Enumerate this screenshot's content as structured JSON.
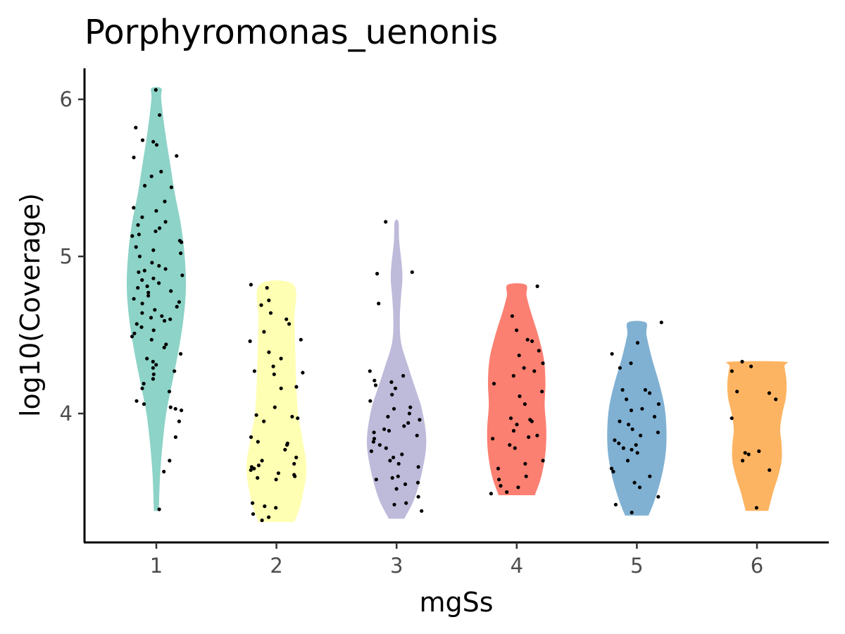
{
  "chart_data": {
    "type": "violin",
    "title": "Porphyromonas_uenonis",
    "xlabel": "mgSs",
    "ylabel": "log10(Coverage)",
    "categories": [
      "1",
      "2",
      "3",
      "4",
      "5",
      "6"
    ],
    "ylim": [
      3.2,
      6.2
    ],
    "yticks": [
      4,
      5,
      6
    ],
    "grid": false,
    "legend": "none",
    "colors": [
      "#8DD3C7",
      "#FFFFB3",
      "#BEBADA",
      "#FB8072",
      "#80B1D3",
      "#FDB462"
    ],
    "groups": [
      {
        "category": "1",
        "min": 3.38,
        "max": 6.07,
        "density": [
          [
            3.38,
            0.02
          ],
          [
            3.6,
            0.03
          ],
          [
            3.8,
            0.05
          ],
          [
            4.0,
            0.08
          ],
          [
            4.2,
            0.13
          ],
          [
            4.4,
            0.18
          ],
          [
            4.6,
            0.22
          ],
          [
            4.8,
            0.24
          ],
          [
            5.0,
            0.23
          ],
          [
            5.2,
            0.2
          ],
          [
            5.4,
            0.15
          ],
          [
            5.6,
            0.11
          ],
          [
            5.8,
            0.07
          ],
          [
            6.0,
            0.04
          ],
          [
            6.07,
            0.04
          ]
        ],
        "points": [
          6.06,
          5.9,
          5.82,
          5.74,
          5.73,
          5.71,
          5.63,
          5.64,
          5.54,
          5.51,
          5.45,
          5.44,
          5.35,
          5.31,
          5.29,
          5.25,
          5.22,
          5.2,
          5.18,
          5.16,
          5.14,
          5.13,
          5.1,
          5.09,
          5.06,
          5.04,
          5.02,
          5.0,
          4.96,
          4.94,
          4.92,
          4.91,
          4.9,
          4.88,
          4.86,
          4.85,
          4.83,
          4.81,
          4.8,
          4.78,
          4.77,
          4.75,
          4.73,
          4.71,
          4.7,
          4.68,
          4.66,
          4.64,
          4.62,
          4.61,
          4.6,
          4.59,
          4.57,
          4.55,
          4.53,
          4.51,
          4.49,
          4.47,
          4.44,
          4.42,
          4.38,
          4.35,
          4.33,
          4.31,
          4.29,
          4.27,
          4.25,
          4.22,
          4.19,
          4.16,
          4.14,
          4.08,
          4.06,
          4.04,
          4.03,
          4.02,
          3.95,
          3.85,
          3.7,
          3.63,
          3.39
        ]
      },
      {
        "category": "2",
        "min": 3.31,
        "max": 4.82,
        "density": [
          [
            3.31,
            0.2
          ],
          [
            3.4,
            0.26
          ],
          [
            3.5,
            0.3
          ],
          [
            3.6,
            0.33
          ],
          [
            3.7,
            0.33
          ],
          [
            3.8,
            0.3
          ],
          [
            3.9,
            0.27
          ],
          [
            4.0,
            0.24
          ],
          [
            4.2,
            0.22
          ],
          [
            4.4,
            0.21
          ],
          [
            4.6,
            0.2
          ],
          [
            4.82,
            0.19
          ]
        ],
        "points": [
          4.82,
          4.8,
          4.72,
          4.69,
          4.64,
          4.6,
          4.57,
          4.52,
          4.47,
          4.46,
          4.39,
          4.35,
          4.3,
          4.27,
          4.26,
          4.25,
          4.17,
          4.16,
          4.04,
          3.99,
          3.98,
          3.97,
          3.95,
          3.85,
          3.82,
          3.81,
          3.8,
          3.77,
          3.72,
          3.7,
          3.68,
          3.67,
          3.66,
          3.65,
          3.64,
          3.62,
          3.61,
          3.6,
          3.59,
          3.58,
          3.43,
          3.41,
          3.4,
          3.36,
          3.34,
          3.32
        ]
      },
      {
        "category": "3",
        "min": 3.33,
        "max": 5.22,
        "density": [
          [
            3.33,
            0.12
          ],
          [
            3.45,
            0.27
          ],
          [
            3.6,
            0.38
          ],
          [
            3.75,
            0.45
          ],
          [
            3.85,
            0.46
          ],
          [
            3.95,
            0.43
          ],
          [
            4.05,
            0.38
          ],
          [
            4.15,
            0.3
          ],
          [
            4.3,
            0.18
          ],
          [
            4.45,
            0.07
          ],
          [
            4.6,
            0.05
          ],
          [
            4.75,
            0.07
          ],
          [
            4.85,
            0.09
          ],
          [
            4.95,
            0.08
          ],
          [
            5.1,
            0.04
          ],
          [
            5.22,
            0.03
          ]
        ],
        "points": [
          5.22,
          4.9,
          4.89,
          4.7,
          4.27,
          4.24,
          4.21,
          4.2,
          4.18,
          4.16,
          4.12,
          4.08,
          4.04,
          4.03,
          4.0,
          3.98,
          3.96,
          3.94,
          3.92,
          3.9,
          3.89,
          3.88,
          3.86,
          3.84,
          3.82,
          3.8,
          3.78,
          3.76,
          3.74,
          3.72,
          3.7,
          3.68,
          3.66,
          3.6,
          3.59,
          3.58,
          3.56,
          3.55,
          3.52,
          3.47,
          3.43,
          3.42,
          3.38
        ]
      },
      {
        "category": "4",
        "min": 3.48,
        "max": 4.82,
        "density": [
          [
            3.48,
            0.22
          ],
          [
            3.6,
            0.3
          ],
          [
            3.75,
            0.35
          ],
          [
            3.9,
            0.36
          ],
          [
            4.05,
            0.34
          ],
          [
            4.2,
            0.35
          ],
          [
            4.35,
            0.33
          ],
          [
            4.5,
            0.26
          ],
          [
            4.65,
            0.17
          ],
          [
            4.75,
            0.12
          ],
          [
            4.82,
            0.11
          ]
        ],
        "points": [
          4.81,
          4.62,
          4.53,
          4.47,
          4.46,
          4.4,
          4.37,
          4.32,
          4.29,
          4.27,
          4.24,
          4.19,
          4.14,
          4.11,
          4.06,
          3.97,
          3.96,
          3.95,
          3.93,
          3.89,
          3.86,
          3.85,
          3.84,
          3.8,
          3.78,
          3.7,
          3.68,
          3.65,
          3.6,
          3.58,
          3.54,
          3.53,
          3.5,
          3.49
        ]
      },
      {
        "category": "5",
        "min": 3.35,
        "max": 4.58,
        "density": [
          [
            3.35,
            0.17
          ],
          [
            3.45,
            0.26
          ],
          [
            3.6,
            0.36
          ],
          [
            3.75,
            0.42
          ],
          [
            3.9,
            0.43
          ],
          [
            4.05,
            0.4
          ],
          [
            4.2,
            0.32
          ],
          [
            4.35,
            0.22
          ],
          [
            4.5,
            0.14
          ],
          [
            4.58,
            0.13
          ]
        ],
        "points": [
          4.58,
          4.45,
          4.38,
          4.32,
          4.29,
          4.15,
          4.15,
          4.13,
          4.09,
          4.06,
          4.03,
          4.02,
          3.98,
          3.95,
          3.93,
          3.9,
          3.88,
          3.86,
          3.83,
          3.81,
          3.8,
          3.78,
          3.77,
          3.75,
          3.7,
          3.65,
          3.63,
          3.6,
          3.56,
          3.53,
          3.47,
          3.42,
          3.37
        ]
      },
      {
        "category": "6",
        "min": 3.38,
        "max": 4.33,
        "density": [
          [
            3.38,
            0.16
          ],
          [
            3.5,
            0.23
          ],
          [
            3.6,
            0.3
          ],
          [
            3.7,
            0.35
          ],
          [
            3.8,
            0.35
          ],
          [
            3.9,
            0.33
          ],
          [
            4.0,
            0.36
          ],
          [
            4.1,
            0.41
          ],
          [
            4.2,
            0.42
          ],
          [
            4.3,
            0.39
          ],
          [
            4.33,
            0.38
          ]
        ],
        "points": [
          4.33,
          4.3,
          4.27,
          4.14,
          4.13,
          4.09,
          3.97,
          3.76,
          3.75,
          3.74,
          3.7,
          3.64,
          3.4
        ]
      }
    ]
  }
}
